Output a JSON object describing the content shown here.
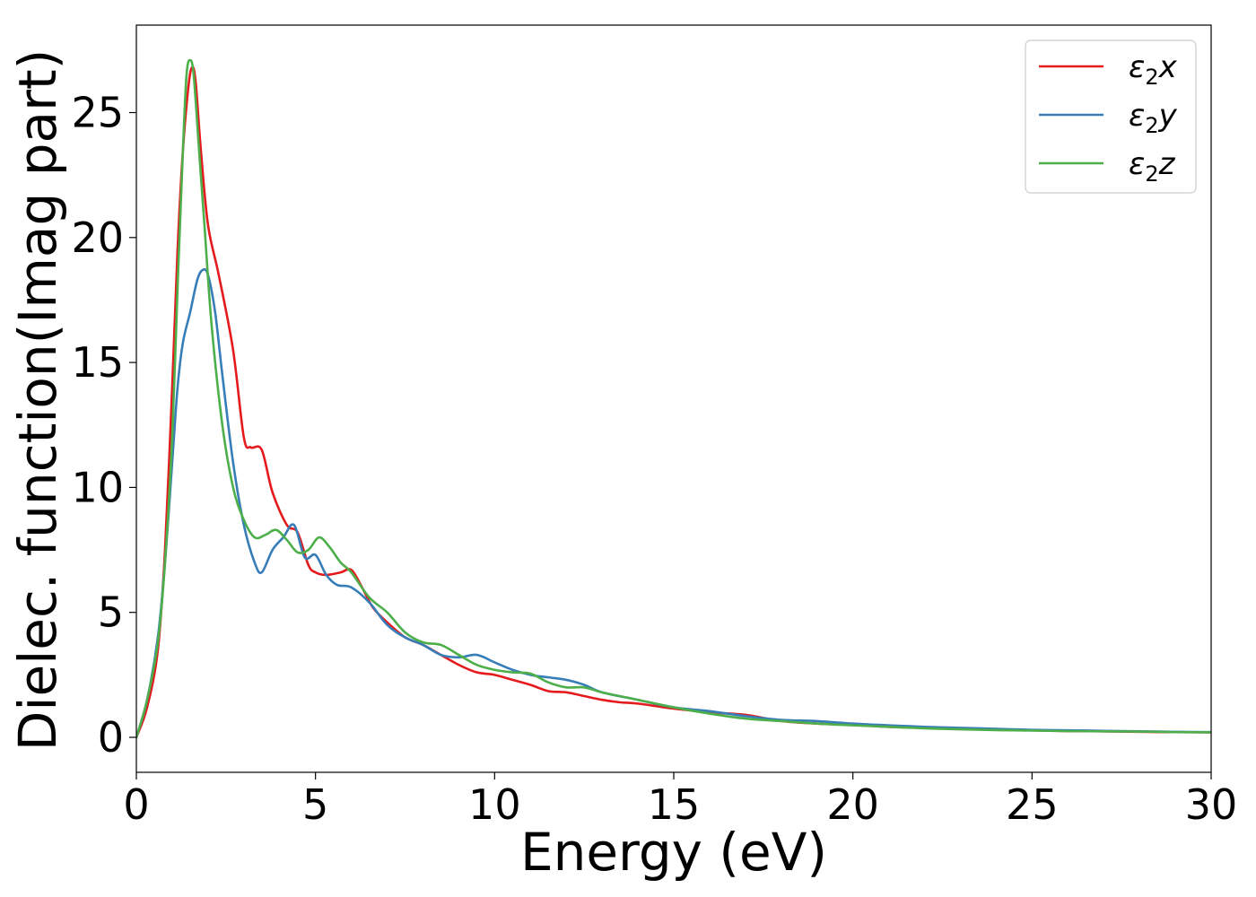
{
  "chart_data": {
    "type": "line",
    "title": "",
    "xlabel": "Energy (eV)",
    "ylabel": "Dielec. function(Imag part)",
    "xlim": [
      0,
      30
    ],
    "ylim": [
      -1.4,
      28.5
    ],
    "xticks": [
      0,
      5,
      10,
      15,
      20,
      25,
      30
    ],
    "yticks": [
      0,
      5,
      10,
      15,
      20,
      25
    ],
    "grid": false,
    "legend_position": "top-right",
    "series": [
      {
        "name": "ε2x",
        "legend_main": "ε",
        "legend_sub": "2",
        "legend_suffix": "x",
        "color": "#e41a1c",
        "x": [
          0,
          0.3,
          0.6,
          0.8,
          1.0,
          1.15,
          1.3,
          1.45,
          1.55,
          1.65,
          1.8,
          2.0,
          2.3,
          2.7,
          3.0,
          3.2,
          3.5,
          3.8,
          4.2,
          4.5,
          4.8,
          5.0,
          5.3,
          5.7,
          6.0,
          6.3,
          6.6,
          7.0,
          7.5,
          8.0,
          8.5,
          9.0,
          9.5,
          10.0,
          10.5,
          11.0,
          11.5,
          12.0,
          12.5,
          13.0,
          13.5,
          14.0,
          15.0,
          16.0,
          17.0,
          18.0,
          19.0,
          20.0,
          21.0,
          22.0,
          23.0,
          24.0,
          25.0,
          26.0,
          27.0,
          28.0,
          29.0,
          30.0
        ],
        "y": [
          0,
          1.2,
          3.5,
          7.5,
          14,
          19.5,
          23.5,
          26.0,
          26.8,
          26.3,
          23.5,
          20.5,
          18.5,
          15.5,
          12.0,
          11.6,
          11.5,
          9.8,
          8.5,
          8.2,
          6.9,
          6.6,
          6.5,
          6.6,
          6.7,
          6.0,
          5.2,
          4.6,
          4.0,
          3.7,
          3.3,
          2.9,
          2.6,
          2.5,
          2.3,
          2.1,
          1.85,
          1.8,
          1.65,
          1.5,
          1.4,
          1.35,
          1.15,
          1.0,
          0.9,
          0.65,
          0.55,
          0.5,
          0.42,
          0.38,
          0.34,
          0.3,
          0.28,
          0.25,
          0.24,
          0.22,
          0.21,
          0.2
        ]
      },
      {
        "name": "ε2y",
        "legend_main": "ε",
        "legend_sub": "2",
        "legend_suffix": "y",
        "color": "#377eb8",
        "x": [
          0,
          0.3,
          0.6,
          0.8,
          1.0,
          1.15,
          1.3,
          1.5,
          1.7,
          1.85,
          2.0,
          2.2,
          2.4,
          2.7,
          3.0,
          3.3,
          3.5,
          3.8,
          4.1,
          4.4,
          4.7,
          5.0,
          5.3,
          5.6,
          6.0,
          6.5,
          7.0,
          7.5,
          8.0,
          8.5,
          9.0,
          9.5,
          10.0,
          10.5,
          11.0,
          11.5,
          12.0,
          12.5,
          13.0,
          14.0,
          15.0,
          16.0,
          17.0,
          18.0,
          19.0,
          20.0,
          21.0,
          22.0,
          23.0,
          24.0,
          25.0,
          26.0,
          27.0,
          28.0,
          29.0,
          30.0
        ],
        "y": [
          0,
          1.5,
          4.0,
          7.0,
          11.0,
          14.0,
          15.8,
          17.0,
          18.3,
          18.7,
          18.5,
          17.0,
          14.5,
          11.0,
          8.5,
          7.0,
          6.6,
          7.5,
          8.0,
          8.5,
          7.2,
          7.3,
          6.5,
          6.1,
          6.0,
          5.4,
          4.5,
          4.0,
          3.7,
          3.3,
          3.2,
          3.3,
          3.0,
          2.7,
          2.5,
          2.4,
          2.3,
          2.1,
          1.8,
          1.5,
          1.2,
          1.05,
          0.85,
          0.7,
          0.65,
          0.55,
          0.48,
          0.42,
          0.38,
          0.34,
          0.3,
          0.28,
          0.26,
          0.24,
          0.22,
          0.21
        ]
      },
      {
        "name": "ε2z",
        "legend_main": "ε",
        "legend_sub": "2",
        "legend_suffix": "z",
        "color": "#4daf4a",
        "x": [
          0,
          0.3,
          0.6,
          0.8,
          1.0,
          1.15,
          1.3,
          1.4,
          1.5,
          1.6,
          1.75,
          1.9,
          2.1,
          2.4,
          2.7,
          3.0,
          3.3,
          3.6,
          3.9,
          4.2,
          4.5,
          4.8,
          5.1,
          5.4,
          5.7,
          6.0,
          6.5,
          7.0,
          7.5,
          8.0,
          8.5,
          9.0,
          9.5,
          10.0,
          10.5,
          11.0,
          11.5,
          12.0,
          12.5,
          13.0,
          14.0,
          15.0,
          16.0,
          17.0,
          18.0,
          19.0,
          20.0,
          21.0,
          22.0,
          23.0,
          24.0,
          25.0,
          26.0,
          27.0,
          28.0,
          29.0,
          30.0
        ],
        "y": [
          0,
          1.5,
          3.8,
          7.0,
          12.0,
          18.0,
          23.5,
          26.5,
          27.1,
          26.5,
          23.5,
          20.5,
          16.5,
          12.5,
          10.0,
          8.7,
          8.0,
          8.1,
          8.3,
          7.9,
          7.4,
          7.5,
          8.0,
          7.6,
          7.0,
          6.6,
          5.6,
          5.0,
          4.2,
          3.8,
          3.7,
          3.3,
          2.9,
          2.7,
          2.6,
          2.55,
          2.2,
          2.0,
          2.0,
          1.8,
          1.5,
          1.2,
          0.95,
          0.75,
          0.65,
          0.55,
          0.48,
          0.42,
          0.36,
          0.32,
          0.29,
          0.27,
          0.25,
          0.24,
          0.23,
          0.21,
          0.2
        ]
      }
    ]
  }
}
